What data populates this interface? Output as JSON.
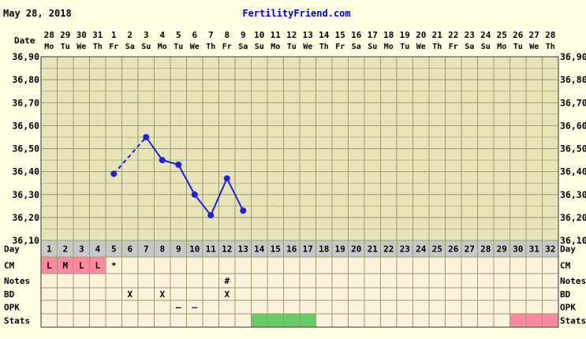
{
  "header": {
    "date": "May 28, 2018",
    "site": "FertilityFriend.com"
  },
  "labels": {
    "date": "Date",
    "day": "Day",
    "cm": "CM",
    "notes": "Notes",
    "bd": "BD",
    "opk": "OPK",
    "stats": "Stats"
  },
  "colors": {
    "background": "#fefee4",
    "grid": "#9a9a70",
    "temp_area": "#e9e4b8",
    "day_row": "#c8c8c8",
    "line": "#1f1fe6",
    "menses": "#ff8aa0",
    "fertile": "#66cc66",
    "site_text": "#0000cc"
  },
  "chart_data": {
    "type": "line",
    "ylim": [
      36.1,
      36.9
    ],
    "ytick_labels": [
      "36,90",
      "36,80",
      "36,70",
      "36,60",
      "36,50",
      "36,40",
      "36,30",
      "36,20",
      "36,10"
    ],
    "dates": [
      "28",
      "29",
      "30",
      "31",
      "1",
      "2",
      "3",
      "4",
      "5",
      "6",
      "7",
      "8",
      "9",
      "10",
      "11",
      "12",
      "13",
      "14",
      "15",
      "16",
      "17",
      "18",
      "19",
      "20",
      "21",
      "22",
      "23",
      "24",
      "25",
      "26",
      "27",
      "28"
    ],
    "weekdays": [
      "Mo",
      "Tu",
      "We",
      "Th",
      "Fr",
      "Sa",
      "Su",
      "Mo",
      "Tu",
      "We",
      "Th",
      "Fr",
      "Sa",
      "Su",
      "Mo",
      "Tu",
      "We",
      "Th",
      "Fr",
      "Sa",
      "Su",
      "Mo",
      "Tu",
      "We",
      "Th",
      "Fr",
      "Sa",
      "Su",
      "Mo",
      "Tu",
      "We",
      "Th"
    ],
    "cycle_days": [
      "1",
      "2",
      "3",
      "4",
      "5",
      "6",
      "7",
      "8",
      "9",
      "10",
      "11",
      "12",
      "13",
      "14",
      "15",
      "16",
      "17",
      "18",
      "19",
      "20",
      "21",
      "22",
      "23",
      "24",
      "25",
      "26",
      "27",
      "28",
      "29",
      "30",
      "31",
      "32"
    ],
    "temperatures": [
      {
        "day": 5,
        "value": 36.39
      },
      {
        "day": 7,
        "value": 36.55
      },
      {
        "day": 8,
        "value": 36.45
      },
      {
        "day": 9,
        "value": 36.43
      },
      {
        "day": 10,
        "value": 36.3
      },
      {
        "day": 11,
        "value": 36.21
      },
      {
        "day": 12,
        "value": 36.37
      },
      {
        "day": 13,
        "value": 36.23
      }
    ],
    "dashed_segments": [
      [
        5,
        7
      ]
    ],
    "cm": [
      {
        "day": 1,
        "text": "L",
        "menses": true
      },
      {
        "day": 2,
        "text": "M",
        "menses": true
      },
      {
        "day": 3,
        "text": "L",
        "menses": true
      },
      {
        "day": 4,
        "text": "L",
        "menses": true
      },
      {
        "day": 5,
        "text": "*",
        "menses": false
      }
    ],
    "notes": [
      {
        "day": 12,
        "text": "#"
      }
    ],
    "bd": [
      {
        "day": 6,
        "text": "X"
      },
      {
        "day": 8,
        "text": "X"
      },
      {
        "day": 12,
        "text": "X"
      }
    ],
    "opk": [
      {
        "day": 9,
        "text": "–"
      },
      {
        "day": 10,
        "text": "–"
      }
    ],
    "stats": {
      "fertile_days": [
        14,
        15,
        16,
        17
      ],
      "projected_menses": [
        30,
        31,
        32
      ]
    }
  }
}
